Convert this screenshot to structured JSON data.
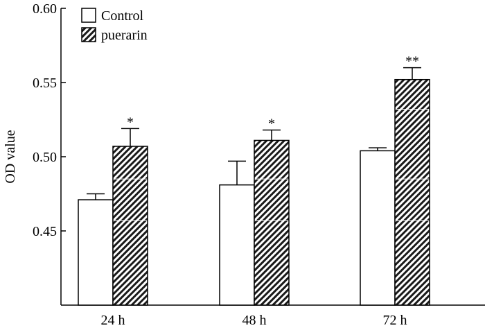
{
  "chart_data": {
    "type": "bar",
    "title": "",
    "xlabel": "",
    "ylabel": "OD value",
    "categories": [
      "24 h",
      "48 h",
      "72 h"
    ],
    "ylim": [
      0.4,
      0.6
    ],
    "yticks": [
      0.45,
      0.5,
      0.55,
      0.6
    ],
    "ytick_labels": [
      "0.45",
      "0.50",
      "0.55",
      "0.60"
    ],
    "legend_position": "top-left",
    "series": [
      {
        "name": "Control",
        "fill": "white",
        "values": [
          0.471,
          0.481,
          0.504
        ],
        "errors": [
          0.004,
          0.016,
          0.002
        ]
      },
      {
        "name": "puerarin",
        "fill": "hatched",
        "values": [
          0.507,
          0.511,
          0.552
        ],
        "errors": [
          0.012,
          0.007,
          0.008
        ],
        "significance": [
          "*",
          "*",
          "**"
        ]
      }
    ],
    "colors": {
      "axis": "#000000",
      "bar_fill_control": "#ffffff",
      "bar_fill_hatch_bg": "#ffffff",
      "hatch_line": "#000000"
    }
  }
}
